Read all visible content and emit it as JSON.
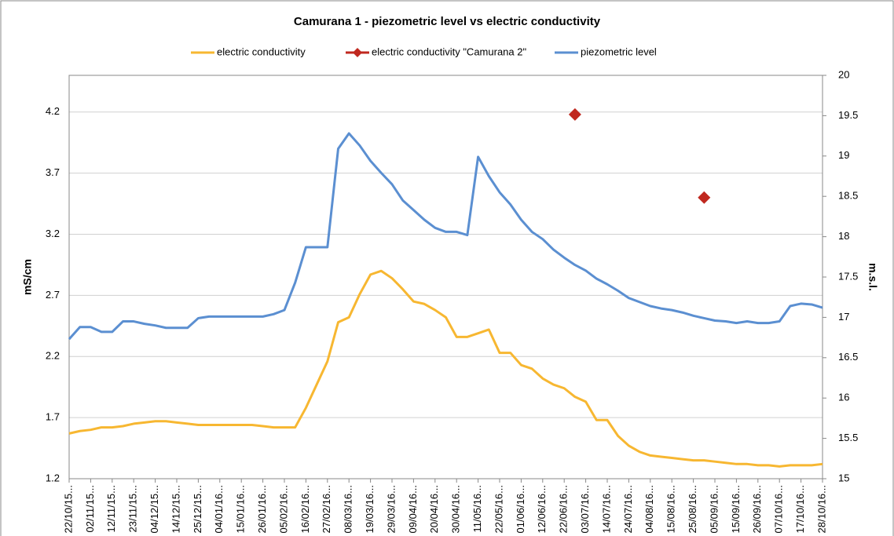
{
  "chart_data": {
    "type": "line",
    "title": "Camurana 1 - piezometric level vs electric conductivity",
    "y_label": "mS/cm",
    "y2_label": "m.s.l.",
    "categories": [
      "22/10/15...",
      null,
      "02/11/15...",
      null,
      "12/11/15...",
      null,
      "23/11/15...",
      null,
      "04/12/15...",
      null,
      "14/12/15...",
      null,
      "25/12/15...",
      null,
      "04/01/16...",
      null,
      "15/01/16...",
      null,
      "26/01/16...",
      null,
      "05/02/16...",
      null,
      "16/02/16...",
      null,
      "27/02/16...",
      null,
      "08/03/16...",
      null,
      "19/03/16...",
      null,
      "29/03/16...",
      null,
      "09/04/16...",
      null,
      "20/04/16...",
      null,
      "30/04/16...",
      null,
      "11/05/16...",
      null,
      "22/05/16...",
      null,
      "01/06/16...",
      null,
      "12/06/16...",
      null,
      "22/06/16...",
      null,
      "03/07/16...",
      null,
      "14/07/16...",
      null,
      "24/07/16...",
      null,
      "04/08/16...",
      null,
      "15/08/16...",
      null,
      "25/08/16...",
      null,
      "05/09/16...",
      null,
      "15/09/16...",
      null,
      "26/09/16...",
      null,
      "07/10/16...",
      null,
      "17/10/16...",
      null,
      "28/10/16..."
    ],
    "series": [
      {
        "name": "electric conductivity",
        "color": "#f7b731",
        "values": [
          1.57,
          1.59,
          1.6,
          1.62,
          1.62,
          1.63,
          1.65,
          1.66,
          1.67,
          1.67,
          1.66,
          1.65,
          1.64,
          1.64,
          1.64,
          1.64,
          1.64,
          1.64,
          1.63,
          1.62,
          1.62,
          1.62,
          1.78,
          1.97,
          2.16,
          2.48,
          2.52,
          2.71,
          2.87,
          2.9,
          2.84,
          2.75,
          2.65,
          2.63,
          2.58,
          2.52,
          2.36,
          2.36,
          2.39,
          2.42,
          2.23,
          2.23,
          2.13,
          2.1,
          2.02,
          1.97,
          1.94,
          1.87,
          1.83,
          1.68,
          1.68,
          1.55,
          1.47,
          1.42,
          1.39,
          1.38,
          1.37,
          1.36,
          1.35,
          1.35,
          1.34,
          1.33,
          1.32,
          1.32,
          1.31,
          1.31,
          1.3,
          1.31,
          1.31,
          1.31,
          1.32
        ]
      },
      {
        "name": "electric conductivity \"Camurana 2\"",
        "color": "#c0281f",
        "marker": "diamond",
        "values": [
          null,
          null,
          null,
          null,
          null,
          null,
          null,
          null,
          null,
          null,
          null,
          null,
          null,
          null,
          null,
          null,
          null,
          null,
          null,
          null,
          null,
          null,
          null,
          null,
          null,
          null,
          null,
          null,
          null,
          null,
          null,
          null,
          null,
          null,
          null,
          null,
          null,
          null,
          null,
          null,
          null,
          null,
          null,
          null,
          null,
          null,
          null,
          4.18,
          null,
          null,
          null,
          null,
          null,
          null,
          null,
          null,
          null,
          null,
          null,
          3.5,
          null,
          null,
          null,
          null,
          null,
          null,
          null,
          null,
          null,
          null,
          null
        ]
      },
      {
        "name": "piezometric level",
        "color": "#5b8fd1",
        "axis": "y2",
        "values": [
          16.73,
          16.88,
          16.88,
          16.82,
          16.82,
          16.95,
          16.95,
          16.92,
          16.9,
          16.87,
          16.87,
          16.87,
          16.99,
          17.01,
          17.01,
          17.01,
          17.01,
          17.01,
          17.01,
          17.04,
          17.09,
          17.43,
          17.87,
          17.87,
          17.87,
          19.09,
          19.28,
          19.13,
          18.94,
          18.79,
          18.65,
          18.45,
          18.33,
          18.21,
          18.11,
          18.06,
          18.06,
          18.02,
          18.99,
          18.75,
          18.55,
          18.4,
          18.21,
          18.06,
          17.97,
          17.84,
          17.74,
          17.65,
          17.58,
          17.48,
          17.41,
          17.33,
          17.24,
          17.19,
          17.14,
          17.11,
          17.09,
          17.06,
          17.02,
          16.99,
          16.96,
          16.95,
          16.93,
          16.95,
          16.93,
          16.93,
          16.95,
          17.14,
          17.17,
          17.16,
          17.12
        ]
      }
    ],
    "ylim": [
      1.2,
      4.5
    ],
    "yticks": [
      1.2,
      1.7,
      2.2,
      2.7,
      3.2,
      3.7,
      4.2
    ],
    "y2lim": [
      15,
      20
    ],
    "y2ticks": [
      15,
      15.5,
      16,
      16.5,
      17,
      17.5,
      18,
      18.5,
      19,
      19.5,
      20
    ],
    "grid": true,
    "legend": "top"
  }
}
